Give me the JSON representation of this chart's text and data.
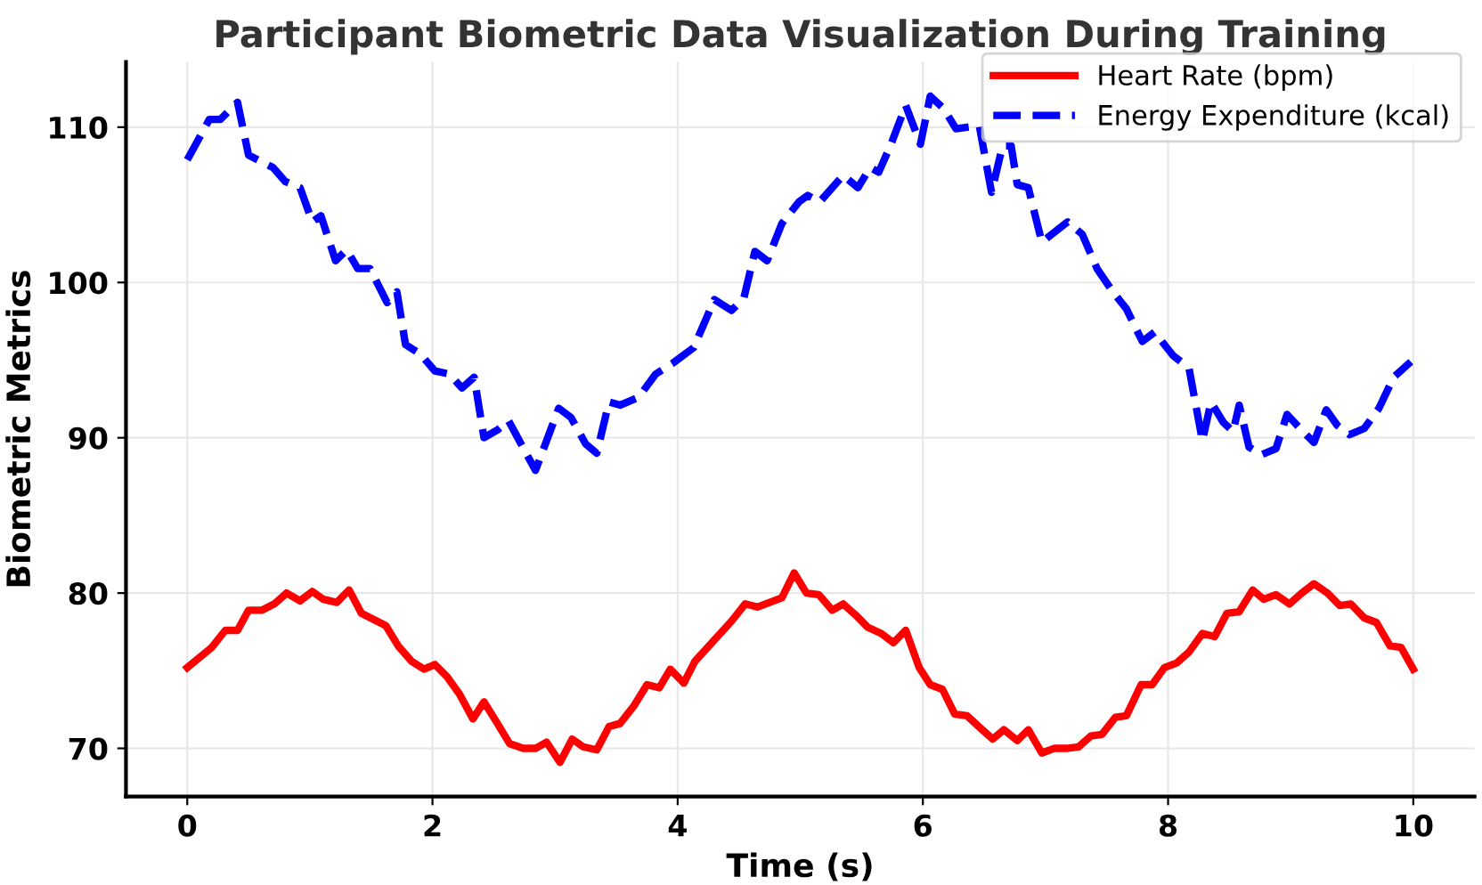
{
  "chart_data": {
    "type": "line",
    "title": "Participant Biometric Data Visualization During Training",
    "xlabel": "Time (s)",
    "ylabel": "Biometric Metrics",
    "xlim": [
      -0.5,
      10.5
    ],
    "ylim": [
      66.9,
      114.2
    ],
    "xticks": [
      0,
      2,
      4,
      6,
      8,
      10
    ],
    "yticks": [
      70,
      80,
      90,
      100,
      110
    ],
    "grid": true,
    "legend": "top right",
    "series": [
      {
        "name": "Heart Rate (bpm)",
        "color": "#ff0000",
        "line_style": "solid",
        "x": [
          0,
          0.2,
          0.31,
          0.41,
          0.5,
          0.61,
          0.71,
          0.81,
          0.92,
          1.02,
          1.11,
          1.22,
          1.32,
          1.42,
          1.62,
          1.72,
          1.83,
          1.93,
          2.02,
          2.12,
          2.22,
          2.33,
          2.42,
          2.53,
          2.63,
          2.74,
          2.84,
          2.93,
          3.04,
          3.14,
          3.23,
          3.34,
          3.44,
          3.53,
          3.64,
          3.75,
          3.85,
          3.94,
          4.05,
          4.14,
          4.44,
          4.55,
          4.65,
          4.85,
          4.95,
          5.05,
          5.15,
          5.26,
          5.35,
          5.45,
          5.55,
          5.66,
          5.76,
          5.86,
          5.97,
          6.06,
          6.16,
          6.26,
          6.36,
          6.47,
          6.57,
          6.66,
          6.77,
          6.86,
          6.97,
          7.07,
          7.17,
          7.27,
          7.37,
          7.46,
          7.57,
          7.66,
          7.78,
          7.87,
          7.97,
          8.07,
          8.17,
          8.28,
          8.38,
          8.48,
          8.58,
          8.69,
          8.78,
          8.88,
          8.99,
          9.09,
          9.19,
          9.3,
          9.4,
          9.49,
          9.6,
          9.7,
          9.81,
          9.9,
          10.0
        ],
        "values": [
          75.2,
          76.5,
          77.6,
          77.6,
          78.9,
          78.9,
          79.3,
          80.0,
          79.5,
          80.1,
          79.6,
          79.4,
          80.2,
          78.7,
          77.9,
          76.6,
          75.6,
          75.1,
          75.4,
          74.6,
          73.5,
          71.9,
          73.0,
          71.6,
          70.3,
          70.0,
          70.0,
          70.4,
          69.1,
          70.6,
          70.1,
          69.9,
          71.4,
          71.6,
          72.7,
          74.1,
          73.9,
          75.1,
          74.2,
          75.6,
          78.2,
          79.3,
          79.1,
          79.7,
          81.3,
          80.0,
          79.9,
          78.9,
          79.3,
          78.6,
          77.8,
          77.4,
          76.8,
          77.6,
          75.2,
          74.1,
          73.8,
          72.2,
          72.1,
          71.3,
          70.6,
          71.2,
          70.5,
          71.2,
          69.7,
          70.0,
          70.0,
          70.1,
          70.8,
          70.9,
          72.0,
          72.1,
          74.1,
          74.1,
          75.2,
          75.5,
          76.2,
          77.4,
          77.2,
          78.7,
          78.8,
          80.2,
          79.6,
          79.9,
          79.3,
          80.0,
          80.6,
          80.0,
          79.2,
          79.3,
          78.4,
          78.1,
          76.6,
          76.5,
          75.1
        ]
      },
      {
        "name": "Energy Expenditure (kcal)",
        "color": "#0000ff",
        "line_style": "dashed",
        "x": [
          0,
          0.18,
          0.27,
          0.41,
          0.5,
          0.7,
          0.8,
          0.92,
          1.02,
          1.09,
          1.21,
          1.3,
          1.39,
          1.49,
          1.63,
          1.71,
          1.78,
          1.9,
          2.02,
          2.14,
          2.24,
          2.34,
          2.42,
          2.53,
          2.62,
          2.84,
          3.03,
          3.13,
          3.25,
          3.34,
          3.44,
          3.53,
          3.68,
          3.82,
          3.96,
          4.13,
          4.3,
          4.44,
          4.54,
          4.63,
          4.73,
          4.85,
          4.99,
          5.06,
          5.16,
          5.35,
          5.47,
          5.57,
          5.64,
          5.74,
          5.86,
          5.98,
          6.06,
          6.17,
          6.27,
          6.46,
          6.56,
          6.65,
          6.72,
          6.77,
          6.86,
          6.97,
          7.18,
          7.3,
          7.42,
          7.54,
          7.66,
          7.79,
          7.89,
          8.04,
          8.17,
          8.28,
          8.35,
          8.45,
          8.53,
          8.58,
          8.66,
          8.76,
          8.88,
          8.97,
          9.1,
          9.19,
          9.29,
          9.38,
          9.48,
          9.6,
          9.72,
          9.84,
          9.98
        ],
        "values": [
          107.9,
          110.5,
          110.5,
          111.6,
          108.2,
          107.4,
          106.5,
          106.1,
          103.9,
          104.3,
          101.4,
          102.1,
          100.9,
          100.9,
          98.7,
          99.4,
          96.0,
          95.4,
          94.3,
          94.1,
          93.2,
          93.9,
          90.0,
          90.5,
          91.1,
          87.9,
          91.9,
          91.3,
          89.6,
          89.0,
          92.3,
          92.1,
          92.6,
          94.1,
          94.8,
          95.8,
          98.9,
          98.2,
          99.0,
          102.0,
          101.4,
          103.8,
          105.2,
          105.6,
          105.2,
          106.9,
          106.1,
          107.4,
          107.1,
          108.9,
          111.4,
          108.9,
          112.0,
          111.2,
          109.9,
          110.1,
          105.8,
          108.8,
          108.8,
          106.3,
          106.1,
          102.6,
          103.9,
          103.1,
          100.9,
          99.5,
          98.3,
          96.2,
          96.8,
          95.3,
          94.5,
          89.8,
          92.3,
          91.0,
          90.4,
          92.1,
          89.4,
          88.9,
          89.3,
          91.5,
          90.4,
          89.7,
          91.8,
          90.8,
          90.2,
          90.6,
          91.9,
          93.9,
          94.9
        ]
      }
    ]
  }
}
